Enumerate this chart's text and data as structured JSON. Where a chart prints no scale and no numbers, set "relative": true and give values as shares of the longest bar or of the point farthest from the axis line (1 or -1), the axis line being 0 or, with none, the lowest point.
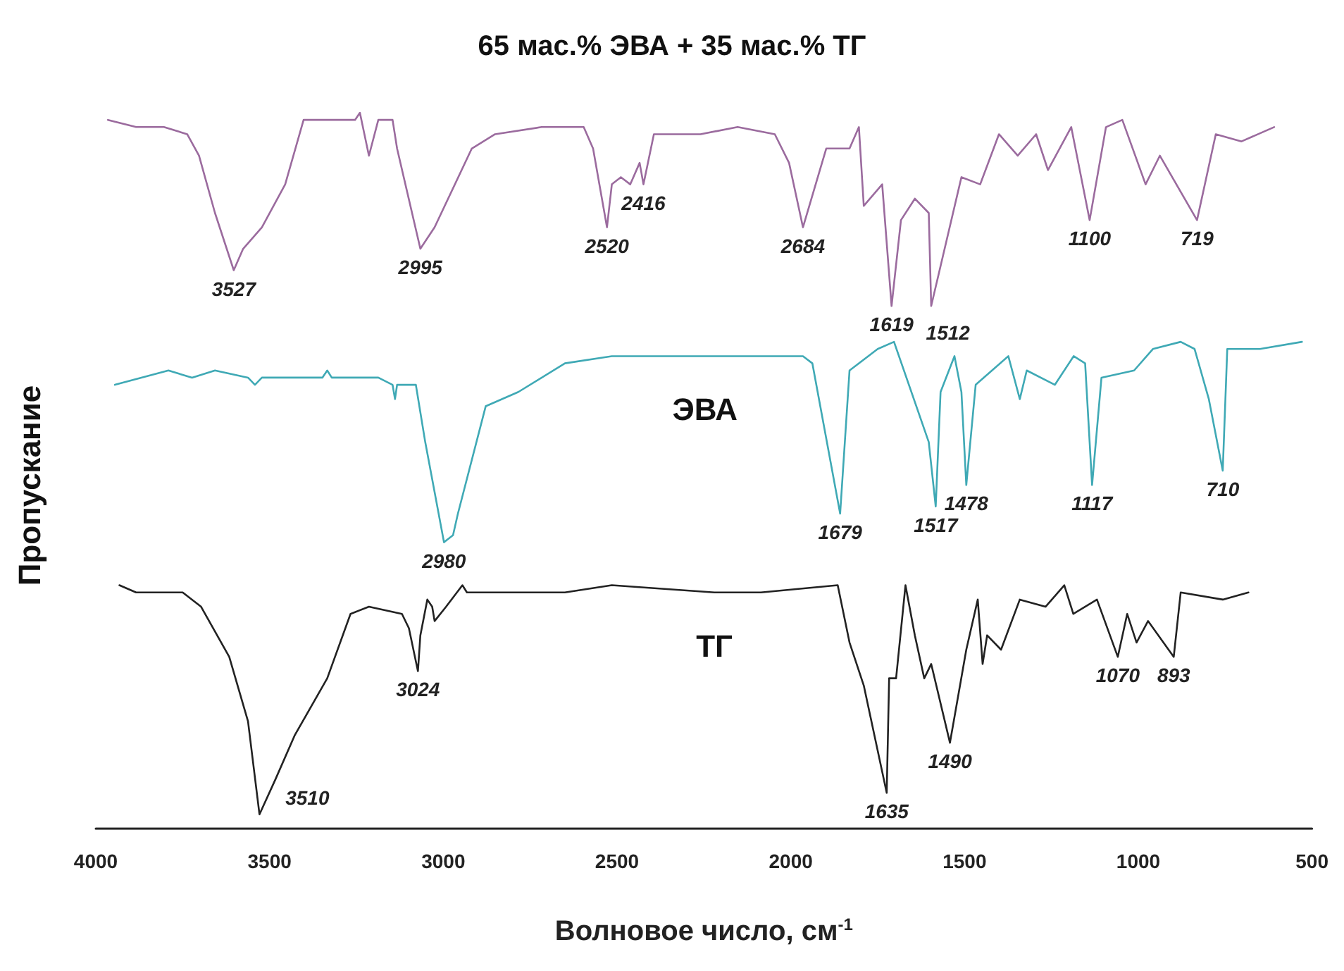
{
  "chart_data": {
    "type": "line",
    "relative": true,
    "title": "65 мас.% ЭВА + 35 мас.% ТГ",
    "xlabel": "Волновое число, см$^{-1}$",
    "ylabel": "Пропускание",
    "xlim": [
      4000,
      500
    ],
    "xticks": [
      4000,
      3500,
      3000,
      2500,
      2000,
      1500,
      1000,
      500
    ],
    "marker": "none",
    "line_style": "solid",
    "series": [
      {
        "color": "#9b6b9e",
        "x": [
          3965,
          3884,
          3804,
          3737,
          3703,
          3657,
          3603,
          3576,
          3522,
          3455,
          3402,
          3254,
          3240,
          3214,
          3187,
          3146,
          3133,
          3066,
          3025,
          2918,
          2851,
          2717,
          2596,
          2569,
          2529,
          2515,
          2489,
          2462,
          2435,
          2424,
          2394,
          2341,
          2260,
          2153,
          2046,
          2005,
          1965,
          1898,
          1831,
          1804,
          1790,
          1737,
          1710,
          1683,
          1643,
          1603,
          1596,
          1509,
          1455,
          1401,
          1347,
          1294,
          1260,
          1193,
          1140,
          1093,
          1046,
          979,
          938,
          831,
          777,
          703,
          609
        ],
        "values": [
          0.99,
          0.98,
          0.98,
          0.97,
          0.94,
          0.86,
          0.78,
          0.81,
          0.84,
          0.9,
          0.99,
          0.99,
          1.0,
          0.94,
          0.99,
          0.99,
          0.95,
          0.81,
          0.84,
          0.95,
          0.97,
          0.98,
          0.98,
          0.95,
          0.84,
          0.9,
          0.91,
          0.9,
          0.93,
          0.9,
          0.97,
          0.97,
          0.97,
          0.98,
          0.97,
          0.93,
          0.84,
          0.95,
          0.95,
          0.98,
          0.87,
          0.9,
          0.73,
          0.85,
          0.88,
          0.86,
          0.73,
          0.91,
          0.9,
          0.97,
          0.94,
          0.97,
          0.92,
          0.98,
          0.85,
          0.98,
          0.99,
          0.9,
          0.94,
          0.85,
          0.97,
          0.96,
          0.98
        ]
      },
      {
        "name": "ЭВА",
        "color": "#3fa9b5",
        "x": [
          3945,
          3791,
          3723,
          3657,
          3562,
          3542,
          3522,
          3348,
          3334,
          3321,
          3187,
          3146,
          3139,
          3133,
          3079,
          3052,
          2998,
          2972,
          2958,
          2878,
          2784,
          2650,
          2515,
          2247,
          2126,
          1965,
          1938,
          1858,
          1831,
          1750,
          1703,
          1603,
          1583,
          1569,
          1529,
          1509,
          1495,
          1468,
          1374,
          1341,
          1321,
          1240,
          1186,
          1153,
          1133,
          1106,
          1012,
          958,
          878,
          838,
          797,
          757,
          744,
          650,
          529
        ],
        "values": [
          0.62,
          0.64,
          0.63,
          0.64,
          0.63,
          0.62,
          0.63,
          0.63,
          0.64,
          0.63,
          0.63,
          0.62,
          0.6,
          0.62,
          0.62,
          0.54,
          0.4,
          0.41,
          0.44,
          0.59,
          0.61,
          0.65,
          0.66,
          0.66,
          0.66,
          0.66,
          0.65,
          0.44,
          0.64,
          0.67,
          0.68,
          0.54,
          0.45,
          0.61,
          0.66,
          0.61,
          0.48,
          0.62,
          0.66,
          0.6,
          0.64,
          0.62,
          0.66,
          0.65,
          0.48,
          0.63,
          0.64,
          0.67,
          0.68,
          0.67,
          0.6,
          0.5,
          0.67,
          0.67,
          0.68
        ]
      },
      {
        "name": "ТГ",
        "color": "#222222",
        "x": [
          3932,
          3884,
          3750,
          3697,
          3616,
          3562,
          3529,
          3482,
          3428,
          3334,
          3267,
          3214,
          3119,
          3099,
          3073,
          3066,
          3046,
          3032,
          3025,
          2992,
          2945,
          2932,
          2784,
          2650,
          2515,
          2220,
          2086,
          1865,
          1831,
          1790,
          1724,
          1717,
          1697,
          1670,
          1643,
          1616,
          1596,
          1542,
          1495,
          1462,
          1448,
          1435,
          1395,
          1341,
          1267,
          1213,
          1187,
          1119,
          1059,
          1032,
          1005,
          972,
          898,
          878,
          757,
          683
        ],
        "values": [
          0.34,
          0.33,
          0.33,
          0.31,
          0.24,
          0.15,
          0.02,
          0.07,
          0.13,
          0.21,
          0.3,
          0.31,
          0.3,
          0.28,
          0.22,
          0.27,
          0.32,
          0.31,
          0.29,
          0.31,
          0.34,
          0.33,
          0.33,
          0.33,
          0.34,
          0.33,
          0.33,
          0.34,
          0.26,
          0.2,
          0.05,
          0.21,
          0.21,
          0.34,
          0.27,
          0.21,
          0.23,
          0.12,
          0.25,
          0.32,
          0.23,
          0.27,
          0.25,
          0.32,
          0.31,
          0.34,
          0.3,
          0.32,
          0.24,
          0.3,
          0.26,
          0.29,
          0.24,
          0.33,
          0.32,
          0.33
        ]
      }
    ],
    "annotations": [
      {
        "text": "3527",
        "x": 3603,
        "y": 0.78
      },
      {
        "text": "2995",
        "x": 3066,
        "y": 0.81
      },
      {
        "text": "2520",
        "x": 2529,
        "y": 0.84
      },
      {
        "text": "2416",
        "x": 2424,
        "y": 0.9
      },
      {
        "text": "2684",
        "x": 1965,
        "y": 0.84
      },
      {
        "text": "1619",
        "x": 1710,
        "y": 0.73
      },
      {
        "text": "1512",
        "x": 1596,
        "y": 0.73
      },
      {
        "text": "1100",
        "x": 1140,
        "y": 0.85
      },
      {
        "text": "719",
        "x": 831,
        "y": 0.85
      },
      {
        "text": "2980",
        "x": 2998,
        "y": 0.4
      },
      {
        "text": "1679",
        "x": 1858,
        "y": 0.44
      },
      {
        "text": "1517",
        "x": 1583,
        "y": 0.45
      },
      {
        "text": "1478",
        "x": 1495,
        "y": 0.48
      },
      {
        "text": "1117",
        "x": 1133,
        "y": 0.48
      },
      {
        "text": "710",
        "x": 757,
        "y": 0.5
      },
      {
        "text": "3024",
        "x": 3073,
        "y": 0.22
      },
      {
        "text": "3510",
        "x": 3529,
        "y": 0.02
      },
      {
        "text": "1635",
        "x": 1724,
        "y": 0.05
      },
      {
        "text": "1490",
        "x": 1542,
        "y": 0.12
      },
      {
        "text": "1070",
        "x": 1059,
        "y": 0.24
      },
      {
        "text": "893",
        "x": 898,
        "y": 0.24
      }
    ]
  }
}
